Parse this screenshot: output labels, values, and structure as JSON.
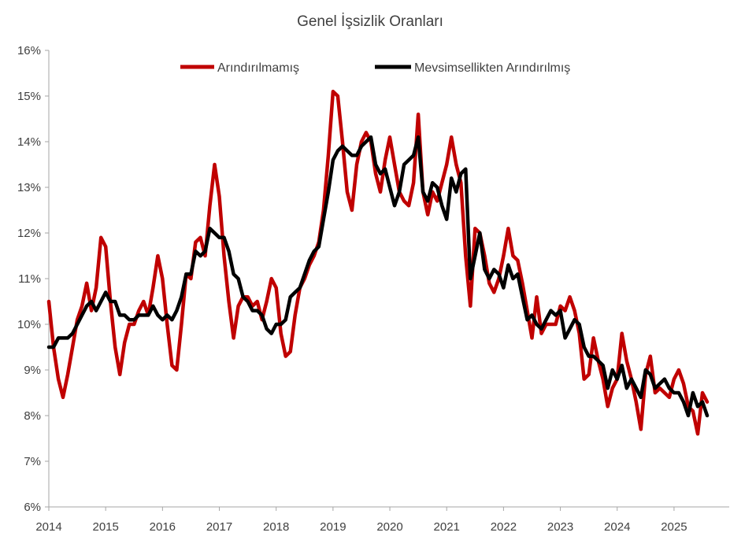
{
  "chart_data": {
    "type": "line",
    "title": "Genel İşsizlik Oranları",
    "xlabel": "",
    "ylabel": "",
    "ylim": [
      6,
      16
    ],
    "xlim": [
      2014.0,
      2025.5
    ],
    "y_ticks": [
      "6%",
      "7%",
      "8%",
      "9%",
      "10%",
      "11%",
      "12%",
      "13%",
      "14%",
      "15%",
      "16%"
    ],
    "x_ticks": [
      "2014",
      "2015",
      "2016",
      "2017",
      "2018",
      "2019",
      "2020",
      "2021",
      "2022",
      "2023",
      "2024",
      "2025"
    ],
    "grid": false,
    "legend_position": "top",
    "series": [
      {
        "name": "Arındırılmamış",
        "color": "#c00000",
        "points": [
          [
            2014.0,
            10.5
          ],
          [
            2014.083,
            9.5
          ],
          [
            2014.167,
            8.8
          ],
          [
            2014.25,
            8.4
          ],
          [
            2014.333,
            8.9
          ],
          [
            2014.417,
            9.5
          ],
          [
            2014.5,
            10.1
          ],
          [
            2014.583,
            10.4
          ],
          [
            2014.667,
            10.9
          ],
          [
            2014.75,
            10.3
          ],
          [
            2014.833,
            10.8
          ],
          [
            2014.917,
            11.9
          ],
          [
            2015.0,
            11.7
          ],
          [
            2015.083,
            10.5
          ],
          [
            2015.167,
            9.5
          ],
          [
            2015.25,
            8.9
          ],
          [
            2015.333,
            9.6
          ],
          [
            2015.417,
            10.0
          ],
          [
            2015.5,
            10.0
          ],
          [
            2015.583,
            10.3
          ],
          [
            2015.667,
            10.5
          ],
          [
            2015.75,
            10.2
          ],
          [
            2015.833,
            10.8
          ],
          [
            2015.917,
            11.5
          ],
          [
            2016.0,
            11.0
          ],
          [
            2016.083,
            10.0
          ],
          [
            2016.167,
            9.1
          ],
          [
            2016.25,
            9.0
          ],
          [
            2016.333,
            10.0
          ],
          [
            2016.417,
            11.1
          ],
          [
            2016.5,
            11.0
          ],
          [
            2016.583,
            11.8
          ],
          [
            2016.667,
            11.9
          ],
          [
            2016.75,
            11.5
          ],
          [
            2016.833,
            12.6
          ],
          [
            2016.917,
            13.5
          ],
          [
            2017.0,
            12.8
          ],
          [
            2017.083,
            11.5
          ],
          [
            2017.167,
            10.5
          ],
          [
            2017.25,
            9.7
          ],
          [
            2017.333,
            10.4
          ],
          [
            2017.417,
            10.6
          ],
          [
            2017.5,
            10.6
          ],
          [
            2017.583,
            10.4
          ],
          [
            2017.667,
            10.5
          ],
          [
            2017.75,
            10.1
          ],
          [
            2017.833,
            10.5
          ],
          [
            2017.917,
            11.0
          ],
          [
            2018.0,
            10.8
          ],
          [
            2018.083,
            9.8
          ],
          [
            2018.167,
            9.3
          ],
          [
            2018.25,
            9.4
          ],
          [
            2018.333,
            10.2
          ],
          [
            2018.417,
            10.8
          ],
          [
            2018.5,
            11.0
          ],
          [
            2018.583,
            11.3
          ],
          [
            2018.667,
            11.5
          ],
          [
            2018.75,
            11.8
          ],
          [
            2018.833,
            12.5
          ],
          [
            2018.917,
            13.7
          ],
          [
            2019.0,
            15.1
          ],
          [
            2019.083,
            15.0
          ],
          [
            2019.167,
            14.0
          ],
          [
            2019.25,
            12.9
          ],
          [
            2019.333,
            12.5
          ],
          [
            2019.417,
            13.5
          ],
          [
            2019.5,
            14.0
          ],
          [
            2019.583,
            14.2
          ],
          [
            2019.667,
            14.0
          ],
          [
            2019.75,
            13.3
          ],
          [
            2019.833,
            12.9
          ],
          [
            2019.917,
            13.6
          ],
          [
            2020.0,
            14.1
          ],
          [
            2020.083,
            13.5
          ],
          [
            2020.167,
            12.9
          ],
          [
            2020.25,
            12.7
          ],
          [
            2020.333,
            12.6
          ],
          [
            2020.417,
            13.1
          ],
          [
            2020.5,
            14.6
          ],
          [
            2020.583,
            12.9
          ],
          [
            2020.667,
            12.4
          ],
          [
            2020.75,
            12.9
          ],
          [
            2020.833,
            12.7
          ],
          [
            2020.917,
            13.1
          ],
          [
            2021.0,
            13.5
          ],
          [
            2021.083,
            14.1
          ],
          [
            2021.167,
            13.5
          ],
          [
            2021.25,
            13.1
          ],
          [
            2021.333,
            11.5
          ],
          [
            2021.417,
            10.4
          ],
          [
            2021.5,
            12.1
          ],
          [
            2021.583,
            12.0
          ],
          [
            2021.667,
            11.5
          ],
          [
            2021.75,
            10.9
          ],
          [
            2021.833,
            10.7
          ],
          [
            2021.917,
            11.0
          ],
          [
            2022.0,
            11.5
          ],
          [
            2022.083,
            12.1
          ],
          [
            2022.167,
            11.5
          ],
          [
            2022.25,
            11.4
          ],
          [
            2022.333,
            10.9
          ],
          [
            2022.417,
            10.3
          ],
          [
            2022.5,
            9.7
          ],
          [
            2022.583,
            10.6
          ],
          [
            2022.667,
            9.8
          ],
          [
            2022.75,
            10.0
          ],
          [
            2022.833,
            10.0
          ],
          [
            2022.917,
            10.0
          ],
          [
            2023.0,
            10.4
          ],
          [
            2023.083,
            10.3
          ],
          [
            2023.167,
            10.6
          ],
          [
            2023.25,
            10.3
          ],
          [
            2023.333,
            9.8
          ],
          [
            2023.417,
            8.8
          ],
          [
            2023.5,
            8.9
          ],
          [
            2023.583,
            9.7
          ],
          [
            2023.667,
            9.2
          ],
          [
            2023.75,
            8.8
          ],
          [
            2023.833,
            8.2
          ],
          [
            2023.917,
            8.6
          ],
          [
            2024.0,
            8.8
          ],
          [
            2024.083,
            9.8
          ],
          [
            2024.167,
            9.2
          ],
          [
            2024.25,
            8.8
          ],
          [
            2024.333,
            8.3
          ],
          [
            2024.417,
            7.7
          ],
          [
            2024.5,
            8.9
          ],
          [
            2024.583,
            9.3
          ],
          [
            2024.667,
            8.5
          ],
          [
            2024.75,
            8.6
          ],
          [
            2024.833,
            8.5
          ],
          [
            2024.917,
            8.4
          ],
          [
            2025.0,
            8.8
          ],
          [
            2025.083,
            9.0
          ],
          [
            2025.167,
            8.7
          ],
          [
            2025.25,
            8.2
          ],
          [
            2025.333,
            8.1
          ],
          [
            2025.417,
            7.6
          ],
          [
            2025.5,
            8.5
          ],
          [
            2025.583,
            8.3
          ]
        ]
      },
      {
        "name": "Mevsimsellikten Arındırılmış",
        "color": "#000000",
        "points": [
          [
            2014.0,
            9.5
          ],
          [
            2014.083,
            9.5
          ],
          [
            2014.167,
            9.7
          ],
          [
            2014.25,
            9.7
          ],
          [
            2014.333,
            9.7
          ],
          [
            2014.417,
            9.8
          ],
          [
            2014.5,
            10.0
          ],
          [
            2014.583,
            10.2
          ],
          [
            2014.667,
            10.4
          ],
          [
            2014.75,
            10.5
          ],
          [
            2014.833,
            10.3
          ],
          [
            2014.917,
            10.5
          ],
          [
            2015.0,
            10.7
          ],
          [
            2015.083,
            10.5
          ],
          [
            2015.167,
            10.5
          ],
          [
            2015.25,
            10.2
          ],
          [
            2015.333,
            10.2
          ],
          [
            2015.417,
            10.1
          ],
          [
            2015.5,
            10.1
          ],
          [
            2015.583,
            10.2
          ],
          [
            2015.667,
            10.2
          ],
          [
            2015.75,
            10.2
          ],
          [
            2015.833,
            10.4
          ],
          [
            2015.917,
            10.2
          ],
          [
            2016.0,
            10.1
          ],
          [
            2016.083,
            10.2
          ],
          [
            2016.167,
            10.1
          ],
          [
            2016.25,
            10.3
          ],
          [
            2016.333,
            10.6
          ],
          [
            2016.417,
            11.1
          ],
          [
            2016.5,
            11.1
          ],
          [
            2016.583,
            11.6
          ],
          [
            2016.667,
            11.5
          ],
          [
            2016.75,
            11.6
          ],
          [
            2016.833,
            12.1
          ],
          [
            2016.917,
            12.0
          ],
          [
            2017.0,
            11.9
          ],
          [
            2017.083,
            11.9
          ],
          [
            2017.167,
            11.6
          ],
          [
            2017.25,
            11.1
          ],
          [
            2017.333,
            11.0
          ],
          [
            2017.417,
            10.6
          ],
          [
            2017.5,
            10.5
          ],
          [
            2017.583,
            10.3
          ],
          [
            2017.667,
            10.3
          ],
          [
            2017.75,
            10.2
          ],
          [
            2017.833,
            9.9
          ],
          [
            2017.917,
            9.8
          ],
          [
            2018.0,
            10.0
          ],
          [
            2018.083,
            10.0
          ],
          [
            2018.167,
            10.1
          ],
          [
            2018.25,
            10.6
          ],
          [
            2018.333,
            10.7
          ],
          [
            2018.417,
            10.8
          ],
          [
            2018.5,
            11.1
          ],
          [
            2018.583,
            11.4
          ],
          [
            2018.667,
            11.6
          ],
          [
            2018.75,
            11.7
          ],
          [
            2018.833,
            12.3
          ],
          [
            2018.917,
            12.9
          ],
          [
            2019.0,
            13.6
          ],
          [
            2019.083,
            13.8
          ],
          [
            2019.167,
            13.9
          ],
          [
            2019.25,
            13.8
          ],
          [
            2019.333,
            13.7
          ],
          [
            2019.417,
            13.7
          ],
          [
            2019.5,
            13.9
          ],
          [
            2019.583,
            14.0
          ],
          [
            2019.667,
            14.1
          ],
          [
            2019.75,
            13.5
          ],
          [
            2019.833,
            13.3
          ],
          [
            2019.917,
            13.4
          ],
          [
            2020.0,
            13.0
          ],
          [
            2020.083,
            12.6
          ],
          [
            2020.167,
            12.9
          ],
          [
            2020.25,
            13.5
          ],
          [
            2020.333,
            13.6
          ],
          [
            2020.417,
            13.7
          ],
          [
            2020.5,
            14.1
          ],
          [
            2020.583,
            12.9
          ],
          [
            2020.667,
            12.7
          ],
          [
            2020.75,
            13.1
          ],
          [
            2020.833,
            13.0
          ],
          [
            2020.917,
            12.6
          ],
          [
            2021.0,
            12.3
          ],
          [
            2021.083,
            13.2
          ],
          [
            2021.167,
            12.9
          ],
          [
            2021.25,
            13.3
          ],
          [
            2021.333,
            13.4
          ],
          [
            2021.417,
            11.0
          ],
          [
            2021.5,
            11.5
          ],
          [
            2021.583,
            12.0
          ],
          [
            2021.667,
            11.2
          ],
          [
            2021.75,
            11.0
          ],
          [
            2021.833,
            11.2
          ],
          [
            2021.917,
            11.1
          ],
          [
            2022.0,
            10.8
          ],
          [
            2022.083,
            11.3
          ],
          [
            2022.167,
            11.0
          ],
          [
            2022.25,
            11.1
          ],
          [
            2022.333,
            10.6
          ],
          [
            2022.417,
            10.1
          ],
          [
            2022.5,
            10.2
          ],
          [
            2022.583,
            10.0
          ],
          [
            2022.667,
            9.9
          ],
          [
            2022.75,
            10.1
          ],
          [
            2022.833,
            10.3
          ],
          [
            2022.917,
            10.2
          ],
          [
            2023.0,
            10.3
          ],
          [
            2023.083,
            9.7
          ],
          [
            2023.167,
            9.9
          ],
          [
            2023.25,
            10.1
          ],
          [
            2023.333,
            10.0
          ],
          [
            2023.417,
            9.5
          ],
          [
            2023.5,
            9.3
          ],
          [
            2023.583,
            9.3
          ],
          [
            2023.667,
            9.2
          ],
          [
            2023.75,
            9.1
          ],
          [
            2023.833,
            8.6
          ],
          [
            2023.917,
            9.0
          ],
          [
            2024.0,
            8.8
          ],
          [
            2024.083,
            9.1
          ],
          [
            2024.167,
            8.6
          ],
          [
            2024.25,
            8.8
          ],
          [
            2024.333,
            8.6
          ],
          [
            2024.417,
            8.4
          ],
          [
            2024.5,
            9.0
          ],
          [
            2024.583,
            8.9
          ],
          [
            2024.667,
            8.6
          ],
          [
            2024.75,
            8.7
          ],
          [
            2024.833,
            8.8
          ],
          [
            2024.917,
            8.6
          ],
          [
            2025.0,
            8.5
          ],
          [
            2025.083,
            8.5
          ],
          [
            2025.167,
            8.3
          ],
          [
            2025.25,
            8.0
          ],
          [
            2025.333,
            8.5
          ],
          [
            2025.417,
            8.2
          ],
          [
            2025.5,
            8.3
          ],
          [
            2025.583,
            8.0
          ]
        ]
      }
    ]
  }
}
